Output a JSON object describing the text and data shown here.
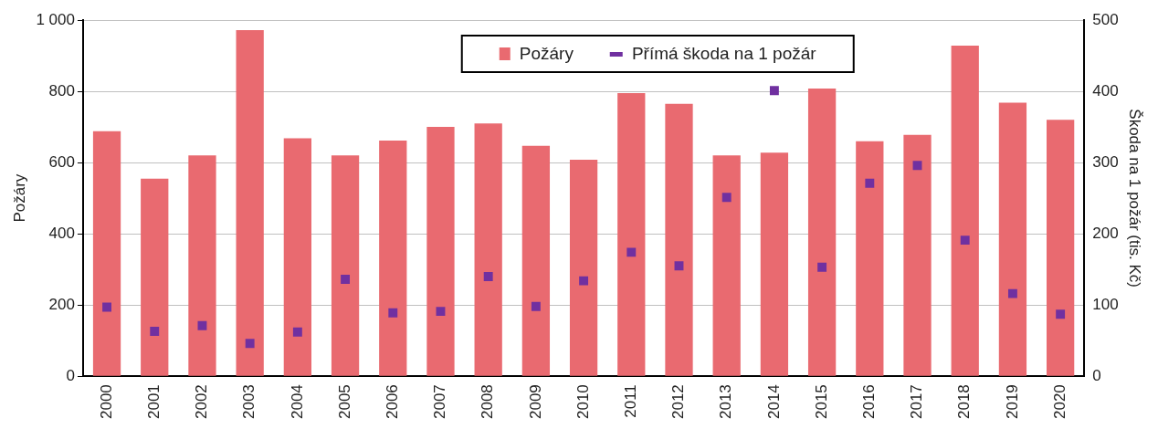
{
  "chart_data": {
    "type": "bar",
    "categories": [
      "2000",
      "2001",
      "2002",
      "2003",
      "2004",
      "2005",
      "2006",
      "2007",
      "2008",
      "2009",
      "2010",
      "2011",
      "2012",
      "2013",
      "2014",
      "2015",
      "2016",
      "2017",
      "2018",
      "2019",
      "2020"
    ],
    "series": [
      {
        "name": "Požáry",
        "color": "#e96a70",
        "values": [
          688,
          555,
          620,
          972,
          668,
          620,
          662,
          700,
          710,
          647,
          608,
          795,
          765,
          620,
          628,
          808,
          660,
          678,
          928,
          768,
          720
        ]
      },
      {
        "name": "Přímá škoda na 1 požár",
        "type": "scatter",
        "axis": "y2",
        "marker": "square",
        "color": "#7030a0",
        "values": [
          97,
          63,
          71,
          46,
          62,
          136,
          89,
          91,
          140,
          98,
          134,
          174,
          155,
          251,
          401,
          153,
          271,
          296,
          191,
          116,
          87
        ]
      }
    ],
    "ylabel": "Požáry",
    "y2label": "Škoda na 1 požár (tis. Kč)",
    "ylim": [
      0,
      1000
    ],
    "yticks": [
      0,
      200,
      400,
      600,
      800,
      {
        "value": 1000,
        "label": "1 000"
      }
    ],
    "y2lim": [
      0,
      500
    ],
    "y2ticks": [
      0,
      100,
      200,
      300,
      400,
      500
    ],
    "grid": "y",
    "legend": "top"
  }
}
